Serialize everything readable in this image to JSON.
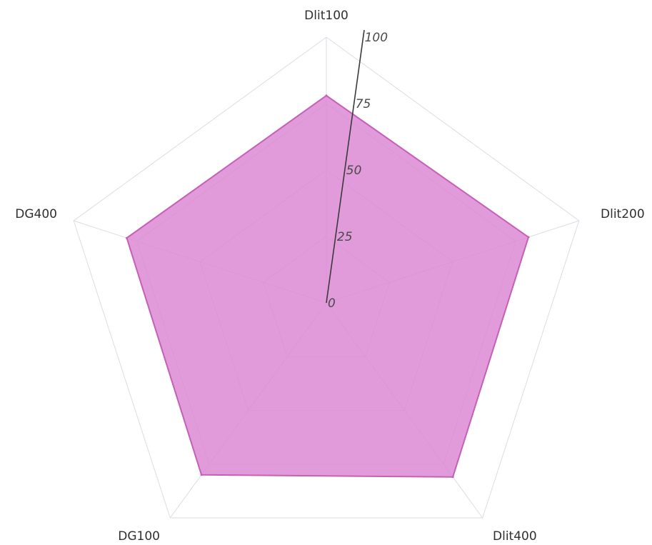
{
  "chart_data": {
    "type": "radar",
    "title": "",
    "categories": [
      "Dlit100",
      "Dlit200",
      "Dlit400",
      "DG100",
      "DG400"
    ],
    "series": [
      {
        "values": [
          78,
          80,
          81,
          80,
          79
        ]
      }
    ],
    "rlim": [
      0,
      100
    ],
    "radial_ticks": [
      0,
      25,
      50,
      75,
      100
    ],
    "radial_tick_labels": [
      "0",
      "25",
      "50",
      "75",
      "100"
    ],
    "grid": true,
    "colors": {
      "fill": "#dc8ad3",
      "stroke": "#c65fb6",
      "grid": "#d9dee3",
      "axis": "#3a3a3a"
    }
  }
}
